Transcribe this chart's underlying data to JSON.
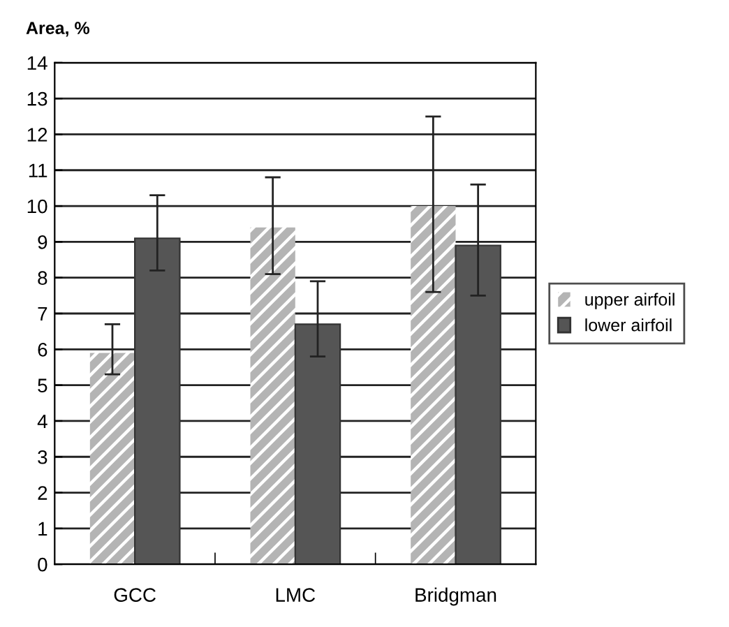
{
  "chart_data": {
    "type": "bar",
    "ylabel": "Area, %",
    "categories": [
      "GCC",
      "LMC",
      "Bridgman"
    ],
    "series": [
      {
        "name": "upper airfoil",
        "color": "#b4b4b4",
        "values": [
          5.9,
          9.4,
          10.0
        ],
        "errors": [
          [
            5.3,
            6.7
          ],
          [
            8.1,
            10.8
          ],
          [
            7.6,
            12.5
          ]
        ]
      },
      {
        "name": "lower airfoil",
        "color": "#555555",
        "values": [
          9.1,
          6.7,
          8.9
        ],
        "errors": [
          [
            8.2,
            10.3
          ],
          [
            5.8,
            7.9
          ],
          [
            7.5,
            10.6
          ]
        ]
      }
    ],
    "ylim": [
      0,
      14
    ],
    "yticks": [
      0,
      1,
      2,
      3,
      4,
      5,
      6,
      7,
      8,
      9,
      10,
      11,
      12,
      13,
      14
    ],
    "grid": "y",
    "legend": "right"
  }
}
